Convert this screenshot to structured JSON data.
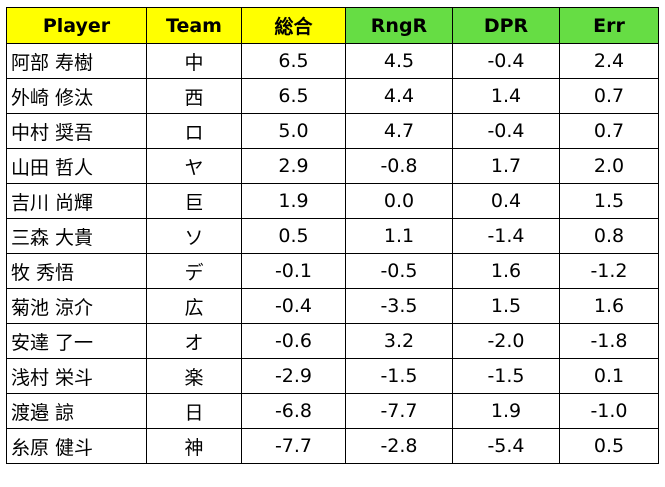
{
  "table": {
    "headers": [
      {
        "label": "Player",
        "color": "#ffff00"
      },
      {
        "label": "Team",
        "color": "#ffff00"
      },
      {
        "label": "総合",
        "color": "#ffff00"
      },
      {
        "label": "RngR",
        "color": "#66dd44"
      },
      {
        "label": "DPR",
        "color": "#66dd44"
      },
      {
        "label": "Err",
        "color": "#66dd44"
      }
    ],
    "rows": [
      {
        "player": "阿部 寿樹",
        "team": "中",
        "total": "6.5",
        "rngr": "4.5",
        "dpr": "-0.4",
        "err": "2.4"
      },
      {
        "player": "外崎 修汰",
        "team": "西",
        "total": "6.5",
        "rngr": "4.4",
        "dpr": "1.4",
        "err": "0.7"
      },
      {
        "player": "中村 奨吾",
        "team": "ロ",
        "total": "5.0",
        "rngr": "4.7",
        "dpr": "-0.4",
        "err": "0.7"
      },
      {
        "player": "山田 哲人",
        "team": "ヤ",
        "total": "2.9",
        "rngr": "-0.8",
        "dpr": "1.7",
        "err": "2.0"
      },
      {
        "player": "吉川 尚輝",
        "team": "巨",
        "total": "1.9",
        "rngr": "0.0",
        "dpr": "0.4",
        "err": "1.5"
      },
      {
        "player": "三森 大貴",
        "team": "ソ",
        "total": "0.5",
        "rngr": "1.1",
        "dpr": "-1.4",
        "err": "0.8"
      },
      {
        "player": "牧 秀悟",
        "team": "デ",
        "total": "-0.1",
        "rngr": "-0.5",
        "dpr": "1.6",
        "err": "-1.2"
      },
      {
        "player": "菊池 涼介",
        "team": "広",
        "total": "-0.4",
        "rngr": "-3.5",
        "dpr": "1.5",
        "err": "1.6"
      },
      {
        "player": "安達 了一",
        "team": "オ",
        "total": "-0.6",
        "rngr": "3.2",
        "dpr": "-2.0",
        "err": "-1.8"
      },
      {
        "player": "浅村 栄斗",
        "team": "楽",
        "total": "-2.9",
        "rngr": "-1.5",
        "dpr": "-1.5",
        "err": "0.1"
      },
      {
        "player": "渡邉 諒",
        "team": "日",
        "total": "-6.8",
        "rngr": "-7.7",
        "dpr": "1.9",
        "err": "-1.0"
      },
      {
        "player": "糸原 健斗",
        "team": "神",
        "total": "-7.7",
        "rngr": "-2.8",
        "dpr": "-5.4",
        "err": "0.5"
      }
    ]
  }
}
